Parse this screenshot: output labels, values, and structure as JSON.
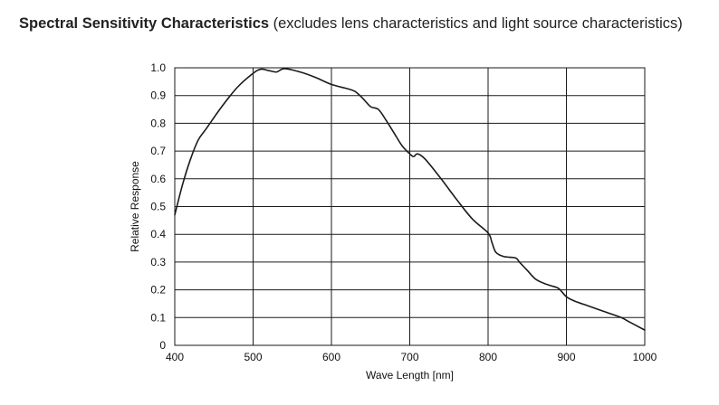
{
  "chart_data": {
    "type": "line",
    "title": "Spectral Sensitivity Characteristics",
    "subtitle": "(excludes lens characteristics and light source characteristics)",
    "xlabel": "Wave Length [nm]",
    "ylabel": "Relative Response",
    "xlim": [
      400,
      1000
    ],
    "ylim": [
      0,
      1.0
    ],
    "x_ticks": [
      400,
      500,
      600,
      700,
      800,
      900,
      1000
    ],
    "x_tick_labels": [
      "400",
      "500",
      "600",
      "700",
      "800",
      "900",
      "1000"
    ],
    "y_ticks": [
      0,
      0.1,
      0.2,
      0.3,
      0.4,
      0.5,
      0.6,
      0.7,
      0.8,
      0.9,
      1.0
    ],
    "y_tick_labels": [
      "0",
      "0.1",
      "0.2",
      "0.3",
      "0.4",
      "0.5",
      "0.6",
      "0.7",
      "0.8",
      "0.9",
      "1.0"
    ],
    "grid": true,
    "line_color": "#1a1a1a",
    "series": [
      {
        "x": [
          400,
          410,
          420,
          430,
          440,
          460,
          480,
          500,
          510,
          520,
          530,
          540,
          560,
          580,
          600,
          620,
          630,
          640,
          650,
          660,
          670,
          680,
          690,
          700,
          705,
          710,
          720,
          740,
          760,
          780,
          800,
          805,
          810,
          820,
          835,
          840,
          850,
          860,
          870,
          880,
          890,
          900,
          910,
          930,
          950,
          970,
          980,
          1000
        ],
        "y": [
          0.47,
          0.58,
          0.67,
          0.74,
          0.78,
          0.86,
          0.93,
          0.98,
          0.995,
          0.99,
          0.985,
          0.997,
          0.985,
          0.965,
          0.94,
          0.925,
          0.915,
          0.89,
          0.86,
          0.85,
          0.81,
          0.765,
          0.72,
          0.69,
          0.68,
          0.69,
          0.67,
          0.6,
          0.525,
          0.455,
          0.405,
          0.37,
          0.335,
          0.32,
          0.315,
          0.3,
          0.27,
          0.24,
          0.225,
          0.215,
          0.205,
          0.175,
          0.16,
          0.14,
          0.12,
          0.1,
          0.085,
          0.055
        ]
      }
    ]
  }
}
